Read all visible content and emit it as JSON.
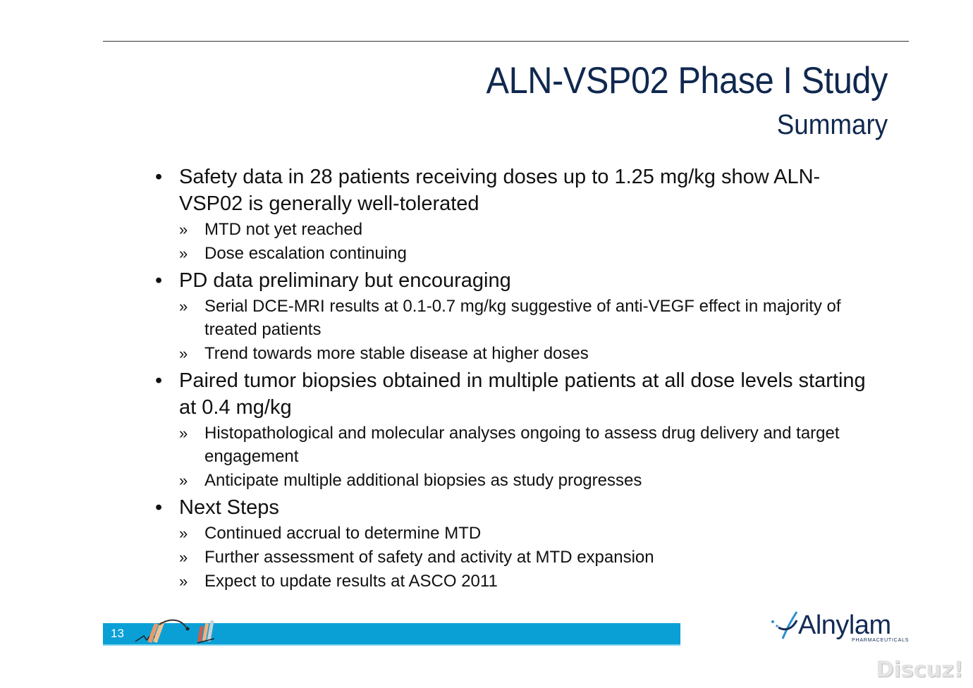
{
  "slide": {
    "title": "ALN-VSP02 Phase I Study",
    "subtitle": "Summary",
    "page_number": "13"
  },
  "markers": {
    "bullet": "•",
    "sub": "»"
  },
  "bullets": [
    {
      "text": "Safety data in 28 patients receiving doses up to 1.25 mg/kg show ALN-VSP02 is generally well-tolerated",
      "subs": [
        "MTD not yet reached",
        "Dose escalation continuing"
      ]
    },
    {
      "text": "PD data preliminary but encouraging",
      "subs": [
        "Serial DCE-MRI results at 0.1-0.7 mg/kg suggestive of anti-VEGF effect in majority of treated patients",
        "Trend towards more stable disease at higher doses"
      ]
    },
    {
      "text": "Paired tumor biopsies obtained in multiple patients at all dose levels starting at 0.4 mg/kg",
      "subs": [
        "Histopathological and molecular analyses ongoing to assess drug delivery and target engagement",
        "Anticipate multiple additional biopsies as study progresses"
      ]
    },
    {
      "text": "Next Steps",
      "subs": [
        "Continued accrual to determine MTD",
        "Further assessment of safety and activity at MTD expansion",
        "Expect to update results at ASCO 2011"
      ]
    }
  ],
  "logo": {
    "name": "Alnylam",
    "tagline": "PHARMACEUTICALS"
  },
  "watermark": "Discuz!",
  "colors": {
    "title": "#10284e",
    "footer_bar": "#0aa0d6",
    "logo": "#122a55"
  }
}
